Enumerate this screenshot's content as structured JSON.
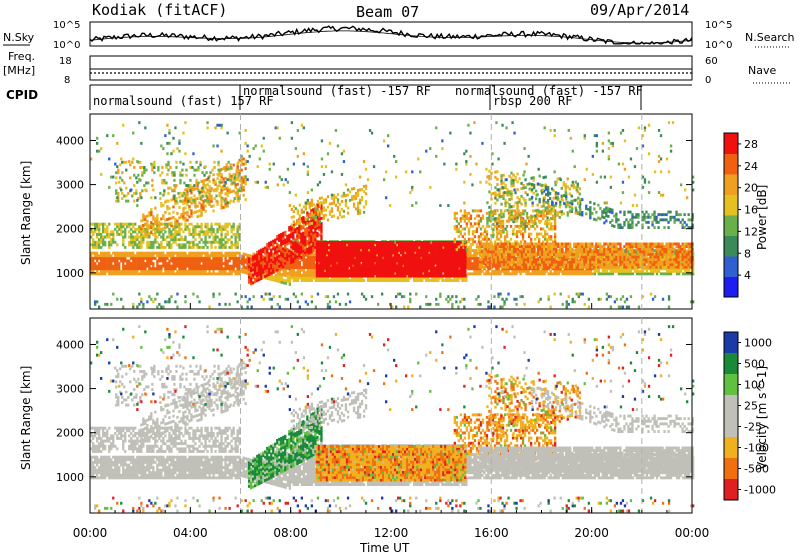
{
  "header": {
    "station": "Kodiak (fitACF)",
    "beam": "Beam 07",
    "date": "09/Apr/2014"
  },
  "strips": {
    "nsky_label": "N.Sky",
    "nsky_ticks": [
      "10^5",
      "10^0"
    ],
    "nsearch_label": "N.Search",
    "nsearch_ticks": [
      "10^5",
      "10^0"
    ],
    "freq_label": "Freq.",
    "freq_unit": "[MHz]",
    "freq_ticks": [
      "18",
      "8"
    ],
    "nave_label": "Nave",
    "nave_ticks": [
      "60",
      "0"
    ],
    "cpid_label": "CPID"
  },
  "cpid_segments": [
    {
      "text": "normalsound (fast) 157 RF",
      "start_hour": 0
    },
    {
      "text": "normalsound (fast) -157 RF",
      "start_hour": 6
    },
    {
      "text": "normalsound (fast) -157 RF",
      "start_hour": 16
    },
    {
      "text": "rbsp 200 RF",
      "start_hour": 16
    },
    {
      "text": "",
      "start_hour": 22
    }
  ],
  "chart_data": [
    {
      "type": "heatmap",
      "title": "",
      "xlabel": "Time UT",
      "ylabel": "Slant Range [km]",
      "xlim": [
        0,
        24
      ],
      "ylim": [
        180,
        4600
      ],
      "x_ticks": [
        "00:00",
        "04:00",
        "08:00",
        "12:00",
        "16:00",
        "20:00",
        "00:00"
      ],
      "y_ticks": [
        1000,
        2000,
        3000,
        4000
      ],
      "colorbar": {
        "label": "Power [dB]",
        "ticks": [
          4,
          8,
          12,
          16,
          20,
          24,
          28
        ],
        "range": [
          0,
          30
        ]
      }
    },
    {
      "type": "heatmap",
      "title": "",
      "xlabel": "Time UT",
      "ylabel": "Slant Range [km]",
      "xlim": [
        0,
        24
      ],
      "ylim": [
        180,
        4600
      ],
      "x_ticks": [
        "00:00",
        "04:00",
        "08:00",
        "12:00",
        "16:00",
        "20:00",
        "00:00"
      ],
      "y_ticks": [
        1000,
        2000,
        3000,
        4000
      ],
      "colorbar": {
        "label": "Velocity [m s^-1]",
        "ticks": [
          "1000",
          "500",
          "100",
          "25",
          "-25",
          "-100",
          "-500",
          "-1000"
        ]
      }
    }
  ],
  "colors": {
    "power_scale": [
      "#1d1df0",
      "#2f5fd0",
      "#3a8a5a",
      "#6ab04a",
      "#e6c020",
      "#f0a020",
      "#f06010",
      "#f01010"
    ],
    "velocity_scale": [
      "#1a3aa8",
      "#1a8a3a",
      "#60c040",
      "#c0c0b8",
      "#c0c0b8",
      "#f0b020",
      "#f07010",
      "#e02020"
    ],
    "ground_scatter": "#c0c0b8"
  }
}
